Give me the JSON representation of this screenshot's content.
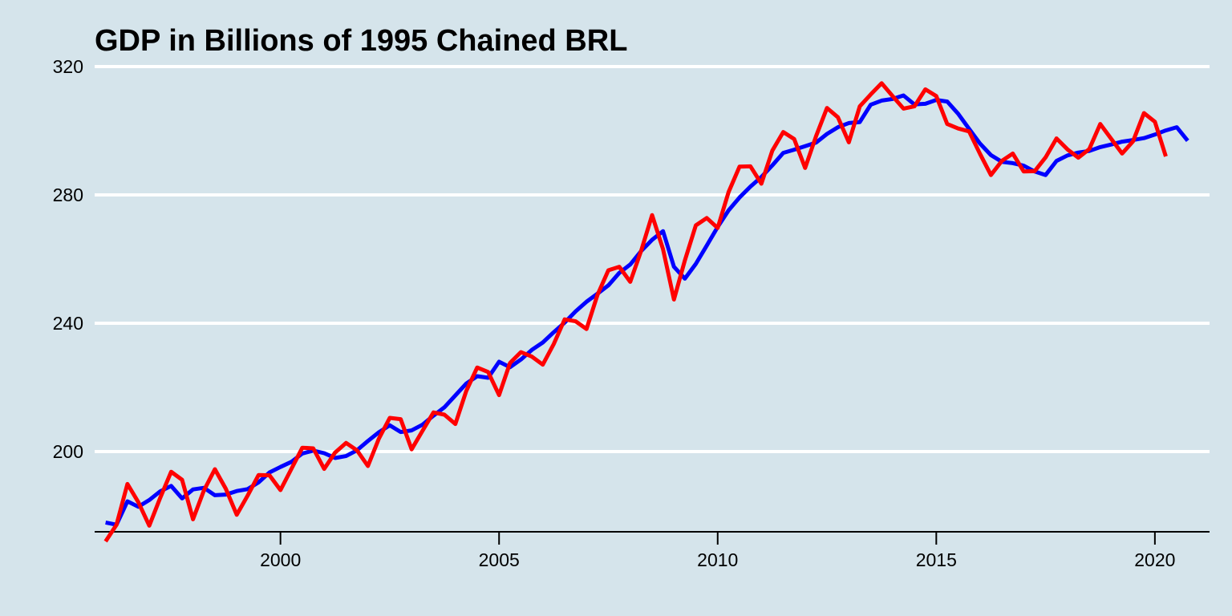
{
  "chart_data": {
    "type": "line",
    "title": "GDP in Billions of 1995 Chained BRL",
    "xlabel": "",
    "ylabel": "",
    "xlim": [
      1995.75,
      2021.25
    ],
    "ylim": [
      175,
      320
    ],
    "x_ticks": [
      2000,
      2005,
      2010,
      2015,
      2020
    ],
    "y_ticks": [
      200,
      240,
      280,
      320
    ],
    "grid": "horizontal",
    "legend": "none",
    "x_start": 1996.0,
    "x_step": 0.25,
    "series": [
      {
        "color": "#0000ff",
        "values": [
          177.9,
          177.2,
          184.5,
          182.8,
          184.9,
          187.6,
          189.3,
          185.4,
          188.2,
          188.7,
          186.4,
          186.6,
          187.7,
          188.3,
          190.4,
          193.5,
          195.2,
          196.8,
          199.4,
          200.3,
          199.5,
          198.0,
          198.6,
          200.4,
          203.3,
          206.0,
          208.2,
          206.1,
          206.6,
          208.4,
          211.2,
          213.8,
          217.5,
          221.2,
          223.5,
          223.0,
          228.0,
          226.3,
          228.7,
          231.7,
          234.0,
          237.2,
          240.2,
          243.7,
          246.7,
          249.2,
          251.8,
          255.7,
          258.3,
          262.5,
          266.0,
          268.7,
          257.6,
          253.9,
          258.5,
          264.2,
          270.0,
          275.2,
          279.2,
          282.6,
          285.6,
          289.2,
          293.1,
          294.1,
          295.2,
          296.3,
          299.0,
          301.1,
          302.4,
          302.7,
          308.1,
          309.4,
          309.9,
          311.0,
          308.2,
          308.4,
          309.6,
          309.1,
          305.3,
          300.6,
          296.0,
          292.4,
          290.3,
          289.9,
          289.1,
          287.3,
          286.2,
          290.6,
          292.3,
          293.2,
          293.7,
          294.9,
          295.7,
          296.6,
          297.1,
          297.7,
          298.8,
          300.1,
          301.1,
          296.9
        ]
      },
      {
        "color": "#ff0000",
        "values": [
          172.0,
          177.2,
          189.9,
          184.2,
          176.9,
          185.6,
          193.7,
          191.2,
          178.9,
          187.9,
          194.5,
          188.4,
          180.3,
          186.3,
          192.7,
          192.6,
          188.0,
          194.6,
          201.2,
          201.0,
          194.6,
          199.7,
          202.7,
          200.4,
          195.5,
          204.0,
          210.5,
          210.1,
          200.7,
          206.5,
          212.2,
          211.5,
          208.6,
          218.9,
          226.2,
          224.8,
          217.6,
          227.6,
          231.0,
          229.6,
          227.1,
          233.5,
          241.2,
          240.6,
          238.2,
          248.8,
          256.5,
          257.6,
          252.9,
          262.6,
          273.7,
          263.1,
          247.4,
          259.6,
          270.5,
          272.8,
          269.7,
          280.9,
          288.8,
          288.9,
          283.5,
          293.8,
          299.6,
          297.4,
          288.4,
          298.3,
          307.1,
          304.2,
          296.4,
          307.6,
          311.3,
          314.8,
          310.8,
          306.9,
          307.6,
          312.9,
          310.8,
          302.1,
          300.7,
          299.8,
          292.8,
          286.2,
          290.6,
          292.9,
          287.3,
          287.4,
          291.7,
          297.6,
          294.2,
          291.6,
          294.3,
          302.1,
          297.5,
          292.9,
          296.7,
          305.5,
          302.8,
          292.0
        ]
      }
    ]
  }
}
